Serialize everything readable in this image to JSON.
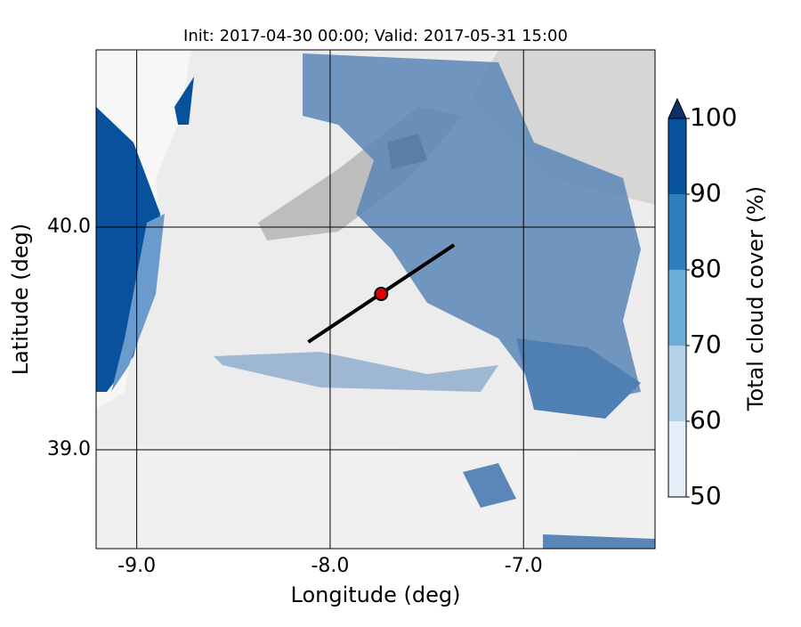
{
  "title": "Init: 2017-04-30 00:00; Valid: 2017-05-31 15:00",
  "x_label": "Longitude (deg)",
  "y_label": "Latitude (deg)",
  "xlim": [
    -9.21,
    -6.32
  ],
  "ylim": [
    38.556,
    40.796
  ],
  "xticks": [
    {
      "value": -9,
      "label": "-9.0"
    },
    {
      "value": -8,
      "label": "-8.0"
    },
    {
      "value": -7,
      "label": "-7.0"
    }
  ],
  "yticks": [
    {
      "value": 39,
      "label": "39.0"
    },
    {
      "value": 40,
      "label": "40.0"
    }
  ],
  "transect": {
    "lon": [
      -8.113,
      -7.359
    ],
    "lat": [
      39.484,
      39.92
    ]
  },
  "point": {
    "lon": -7.736,
    "lat": 39.7,
    "color": "#e00000"
  },
  "colorbar": {
    "label": "Total cloud cover (%)",
    "ticks": [
      50,
      60,
      70,
      80,
      90,
      100
    ],
    "colors": [
      "#e3eef8",
      "#b3d2e9",
      "#6aaed6",
      "#2e7ebc",
      "#08519c"
    ],
    "extend_color": "#08306b"
  }
}
